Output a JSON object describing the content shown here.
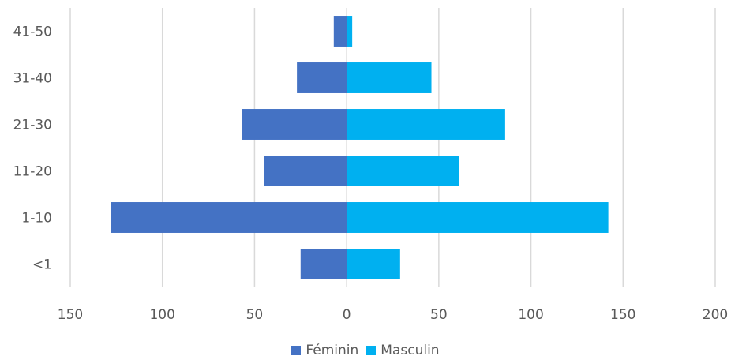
{
  "chart_data": {
    "type": "bar",
    "orientation": "horizontal",
    "layout": "population-pyramid",
    "categories": [
      "<1",
      "1-10",
      "11-20",
      "21-30",
      "31-40",
      "41-50"
    ],
    "series": [
      {
        "name": "Féminin",
        "color": "#4472C4",
        "values": [
          -25,
          -128,
          -45,
          -57,
          -27,
          -7
        ]
      },
      {
        "name": "Masculin",
        "color": "#00B0F0",
        "values": [
          29,
          142,
          61,
          86,
          46,
          3
        ]
      }
    ],
    "xlim": [
      -150,
      200
    ],
    "xticks": [
      -150,
      -100,
      -50,
      0,
      50,
      100,
      150,
      200
    ],
    "xtick_labels": [
      "150",
      "100",
      "50",
      "0",
      "50",
      "100",
      "150",
      "200"
    ],
    "grid": true,
    "legend": "bottom"
  }
}
